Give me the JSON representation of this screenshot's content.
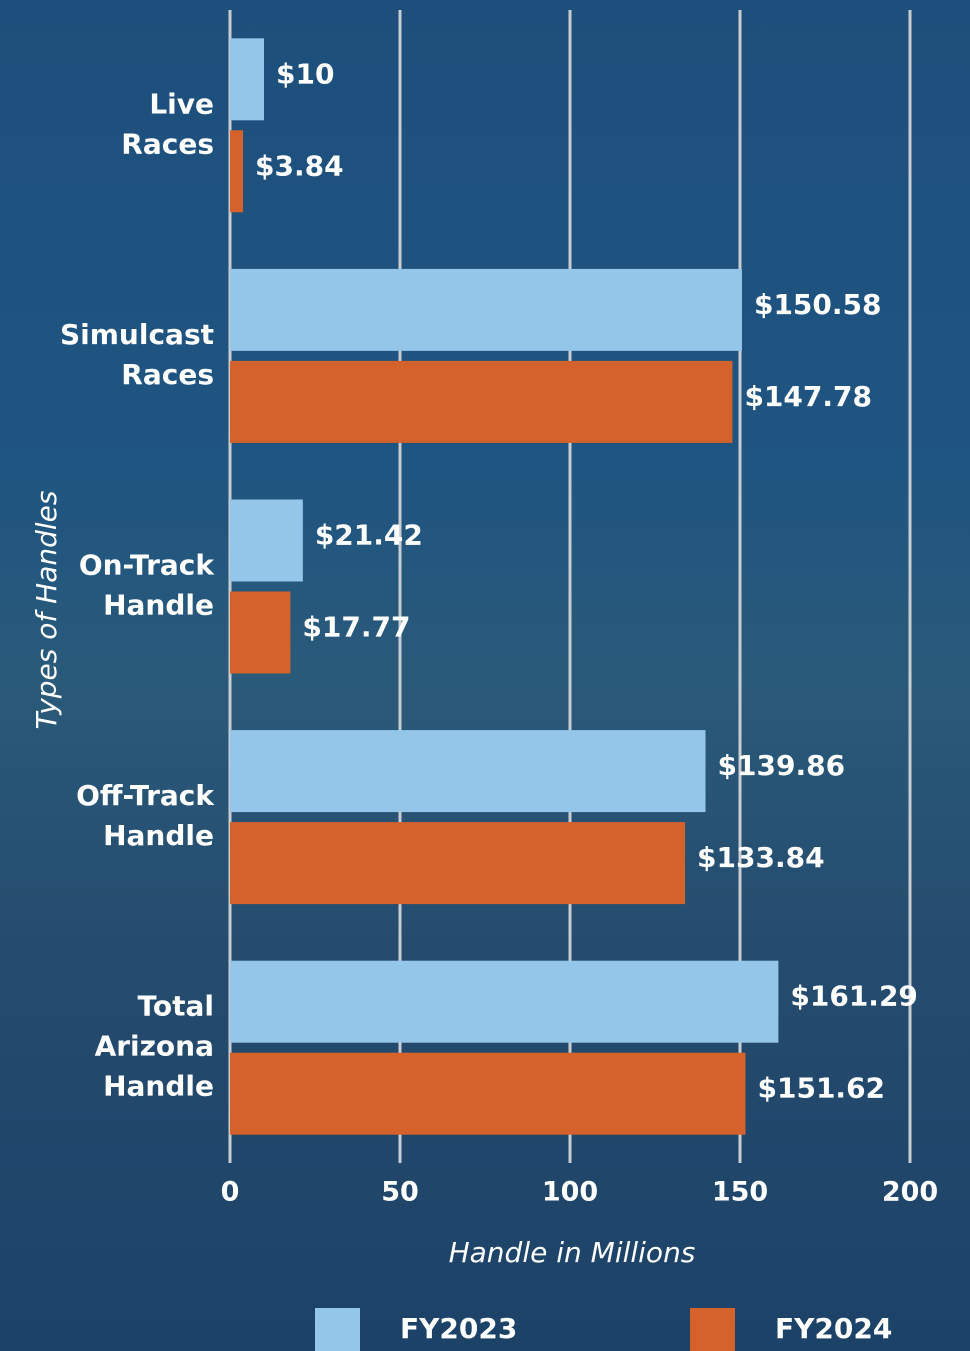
{
  "chart_data": {
    "type": "bar",
    "orientation": "horizontal",
    "categories": [
      "Live Races",
      "Simulcast Races",
      "On-Track Handle",
      "Off-Track Handle",
      "Total Arizona Handle"
    ],
    "series": [
      {
        "name": "FY2023",
        "color": "#93c6e9",
        "values": [
          10,
          150.58,
          21.42,
          139.86,
          161.29
        ],
        "value_labels": [
          "$10",
          "$150.58",
          "$21.42",
          "$139.86",
          "$161.29"
        ]
      },
      {
        "name": "FY2024",
        "color": "#d4622a",
        "values": [
          3.84,
          147.78,
          17.77,
          133.84,
          151.62
        ],
        "value_labels": [
          "$3.84",
          "$147.78",
          "$17.77",
          "$133.84",
          "$151.62"
        ]
      }
    ],
    "xlim": [
      0,
      200
    ],
    "xticks": [
      0,
      50,
      100,
      150,
      200
    ],
    "grid": true,
    "xlabel": "Handle in Millions",
    "ylabel": "Types of Handles",
    "legend": "bottom"
  }
}
